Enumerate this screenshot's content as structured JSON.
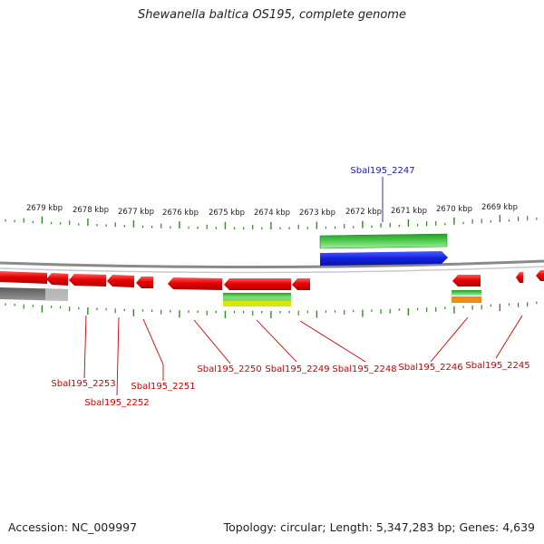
{
  "title": "Shewanella baltica OS195, complete genome",
  "footer": {
    "accession": "Accession: NC_009997",
    "summary": "Topology: circular; Length: 5,347,283 bp; Genes: 4,639"
  },
  "colors": {
    "backbone": "#8a8a8a",
    "tick": "#2e8b22",
    "gene_forward": "#1020e0",
    "gene_reverse": "#e80000",
    "label_forward": "#1a1aa8",
    "label_reverse": "#cc0000",
    "feature_green": "#3cb83c",
    "feature_yellow": "#d6e800",
    "feature_orange": "#f08a10",
    "feature_gray": "#7a7a7a"
  },
  "scale": {
    "unit": "kbp",
    "labels": [
      "2679 kbp",
      "2678 kbp",
      "2677 kbp",
      "2676 kbp",
      "2675 kbp",
      "2674 kbp",
      "2673 kbp",
      "2672 kbp",
      "2671 kbp",
      "2670 kbp",
      "2669 kbp"
    ]
  },
  "genes": [
    {
      "name": "Sbal195_2247",
      "strand": "forward"
    },
    {
      "name": "Sbal195_2253",
      "strand": "reverse"
    },
    {
      "name": "Sbal195_2252",
      "strand": "reverse"
    },
    {
      "name": "Sbal195_2251",
      "strand": "reverse"
    },
    {
      "name": "Sbal195_2250",
      "strand": "reverse"
    },
    {
      "name": "Sbal195_2249",
      "strand": "reverse"
    },
    {
      "name": "Sbal195_2248",
      "strand": "reverse"
    },
    {
      "name": "Sbal195_2246",
      "strand": "reverse"
    },
    {
      "name": "Sbal195_2245",
      "strand": "reverse"
    }
  ]
}
